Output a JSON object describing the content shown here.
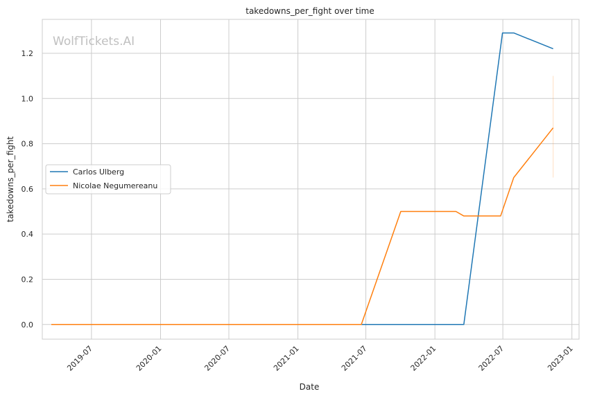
{
  "chart_data": {
    "type": "line",
    "title": "takedowns_per_fight over time",
    "xlabel": "Date",
    "ylabel": "takedowns_per_fight",
    "watermark": "WolfTickets.AI",
    "grid": true,
    "legend_position": "center-left",
    "xlim": [
      "2019-02-20",
      "2023-01-20"
    ],
    "ylim": [
      -0.065,
      1.35
    ],
    "x_ticks": [
      "2019-07-01",
      "2020-01-01",
      "2020-07-01",
      "2021-01-01",
      "2021-07-01",
      "2022-01-01",
      "2022-07-01",
      "2023-01-01"
    ],
    "x_tick_labels": [
      "2019-07",
      "2020-01",
      "2020-07",
      "2021-01",
      "2021-07",
      "2022-01",
      "2022-07",
      "2023-01"
    ],
    "y_ticks": [
      0.0,
      0.2,
      0.4,
      0.6,
      0.8,
      1.0,
      1.2
    ],
    "y_tick_labels": [
      "0.0",
      "0.2",
      "0.4",
      "0.6",
      "0.8",
      "1.0",
      "1.2"
    ],
    "series": [
      {
        "name": "Carlos Ulberg",
        "color": "#1f77b4",
        "x": [
          "2021-03-27",
          "2022-03-19",
          "2022-06-30",
          "2022-07-30",
          "2022-11-12"
        ],
        "values": [
          0.0,
          0.0,
          1.29,
          1.29,
          1.22
        ]
      },
      {
        "name": "Nicolae Negumereanu",
        "color": "#ff7f0e",
        "x": [
          "2019-03-16",
          "2021-06-19",
          "2021-10-02",
          "2022-02-26",
          "2022-03-19",
          "2022-06-25",
          "2022-07-30",
          "2022-11-12"
        ],
        "values": [
          0.0,
          0.0,
          0.5,
          0.5,
          0.48,
          0.48,
          0.65,
          0.87
        ]
      }
    ],
    "error_band": {
      "color": "#ff7f0e",
      "x": "2022-11-12",
      "low": 0.65,
      "high": 1.1
    }
  }
}
